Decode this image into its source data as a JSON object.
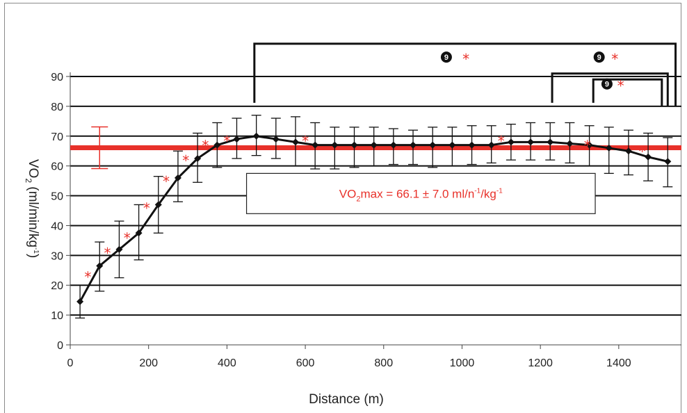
{
  "chart_data": {
    "type": "line",
    "title": "",
    "xlabel": "Distance (m)",
    "ylabel_main": "VO",
    "ylabel_sub": "2",
    "ylabel_rest": " (ml/min/kg",
    "ylabel_sup": "-1",
    "ylabel_end": ")",
    "xlim": [
      0,
      1560
    ],
    "ylim": [
      0,
      90
    ],
    "x_ticks": [
      0,
      200,
      400,
      600,
      800,
      1000,
      1200,
      1400
    ],
    "y_ticks": [
      0,
      10,
      20,
      30,
      40,
      50,
      60,
      70,
      80,
      90
    ],
    "grid": "horizontal",
    "series": [
      {
        "x": [
          25,
          75,
          125,
          175,
          225,
          275,
          325,
          375,
          425,
          475,
          525,
          575,
          625,
          675,
          725,
          775,
          825,
          875,
          925,
          975,
          1025,
          1075,
          1125,
          1175,
          1225,
          1275,
          1325,
          1375,
          1425,
          1475,
          1525
        ],
        "y": [
          14.5,
          26.5,
          32,
          37.5,
          47,
          56,
          62.5,
          67,
          69,
          70,
          69,
          68,
          67,
          67,
          67,
          67,
          67,
          67,
          67,
          67,
          67,
          67,
          68,
          68,
          68,
          67.5,
          67,
          66,
          65,
          63,
          61.5
        ],
        "err_low": [
          9,
          18,
          22.5,
          28.5,
          37.5,
          48,
          54.5,
          59.5,
          62.5,
          63.5,
          62.5,
          60,
          59,
          59,
          59.5,
          60,
          60.5,
          60.5,
          59.5,
          60,
          60.5,
          61,
          62,
          62,
          62,
          61,
          60,
          57.5,
          57,
          55,
          53
        ],
        "err_high": [
          20,
          34.5,
          41.5,
          47,
          56.5,
          65,
          71,
          74.5,
          76,
          77,
          76,
          76.5,
          74.5,
          73,
          73,
          73,
          72.5,
          72,
          73,
          73,
          73.5,
          73.5,
          74,
          74.5,
          74.5,
          74.5,
          73.5,
          73,
          72,
          71,
          69.5
        ]
      }
    ],
    "significance_stars": [
      {
        "x": 45,
        "y": 23
      },
      {
        "x": 95,
        "y": 31
      },
      {
        "x": 145,
        "y": 36
      },
      {
        "x": 195,
        "y": 46
      },
      {
        "x": 245,
        "y": 55
      },
      {
        "x": 295,
        "y": 62
      },
      {
        "x": 345,
        "y": 67
      },
      {
        "x": 400,
        "y": 68.5
      },
      {
        "x": 600,
        "y": 68.5
      },
      {
        "x": 1100,
        "y": 68.5
      },
      {
        "x": 1320,
        "y": 67
      },
      {
        "x": 1460,
        "y": 65
      }
    ],
    "vo2max_line": {
      "value": 66.1,
      "upper": 73.1,
      "lower": 59.1,
      "err_x": 75
    },
    "annotation": {
      "prefix": "VO",
      "sub": "2",
      "mid": "max = 66.1 ± 7.0 ml/n",
      "sup1": "-1",
      "mid2": "/kg",
      "sup2": "-1",
      "x1": 450,
      "x2": 1340,
      "y_top": 57.5,
      "y_bottom": 44
    },
    "brackets": [
      {
        "x1": 470,
        "x2": 1545,
        "y": 101,
        "label_x": 960,
        "star_x": 1010,
        "label_y": 96.5
      },
      {
        "x1": 1230,
        "x2": 1525,
        "y": 91,
        "label_x": 1350,
        "star_x": 1390,
        "label_y": 96.5
      },
      {
        "x1": 1335,
        "x2": 1510,
        "y": 89,
        "label_x": 1370,
        "star_x": 1405,
        "label_y": 87.5
      }
    ],
    "bracket_symbol": "9",
    "star_symbol": "*",
    "colors": {
      "line": "#111111",
      "ref_line": "#e8312a",
      "star": "#e8312a",
      "annotation_text": "#e8312a",
      "grid": "#111111"
    }
  }
}
